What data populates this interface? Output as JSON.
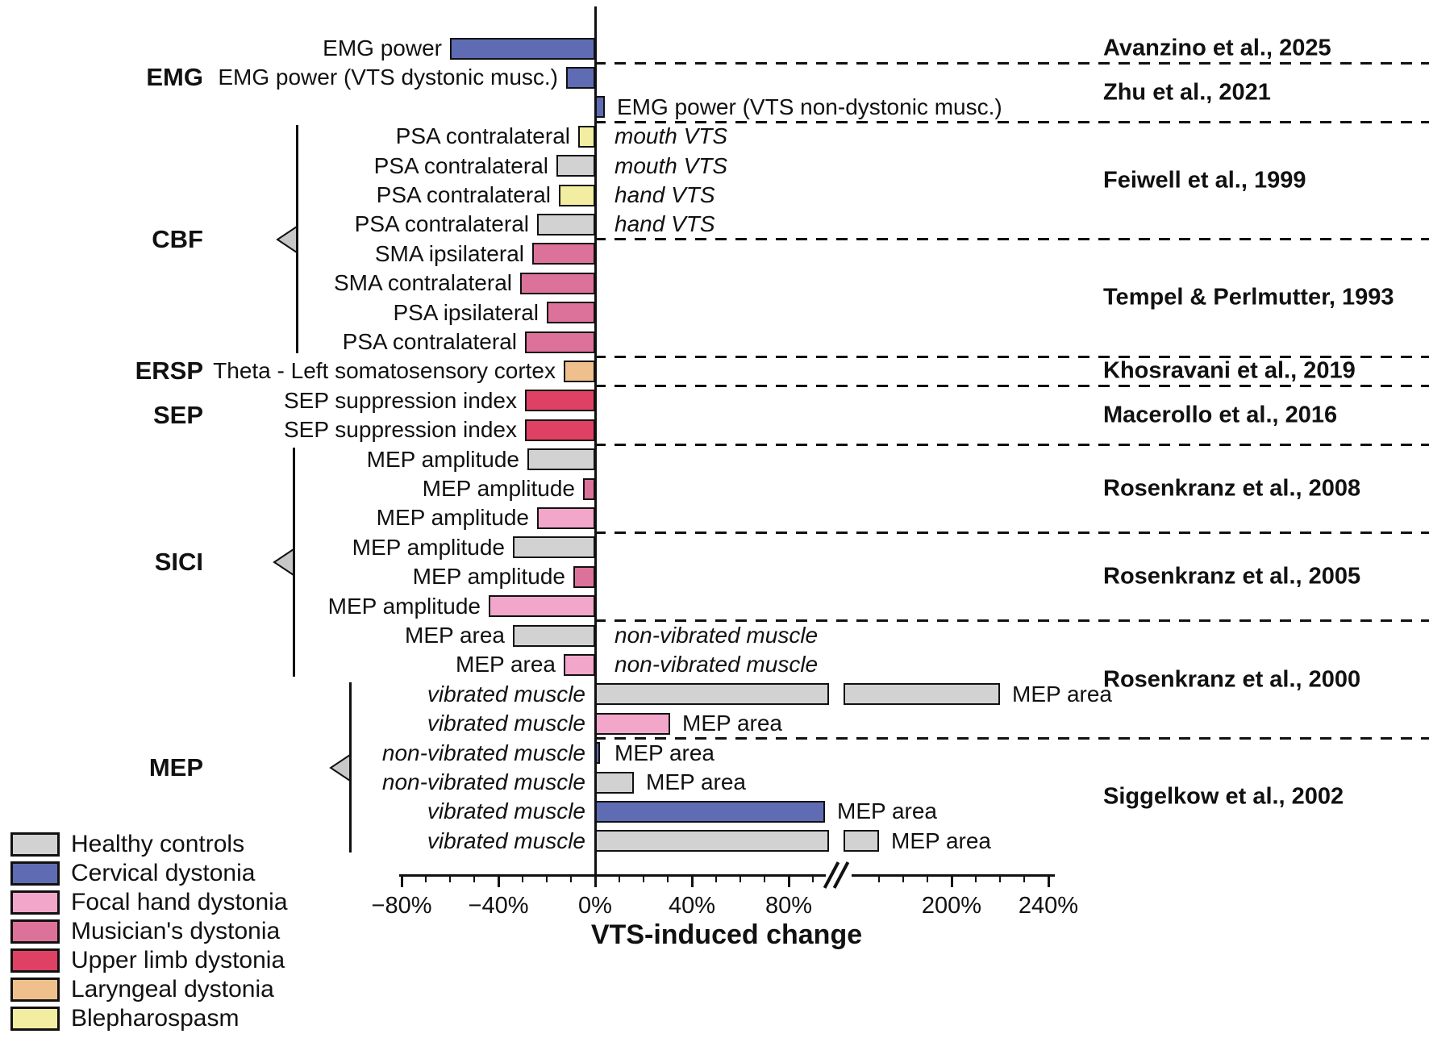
{
  "chart_data": {
    "type": "bar",
    "orientation": "horizontal",
    "xlabel": "VTS-induced change",
    "x_tick_labels": [
      "−80%",
      "−40%",
      "0%",
      "40%",
      "80%",
      "200%",
      "240%"
    ],
    "x_tick_values": [
      -80,
      -40,
      0,
      40,
      80,
      200,
      240
    ],
    "minor_tick_values": [
      -70,
      -60,
      -50,
      -30,
      -20,
      -10,
      10,
      20,
      30,
      50,
      60,
      70,
      90,
      170,
      180,
      190,
      210,
      220,
      230
    ],
    "xlim": [
      -80,
      240
    ],
    "axis_break": {
      "after_value": 100,
      "resume_value": 160
    },
    "grid": "off",
    "legend_position": "bottom-left",
    "legend": [
      {
        "key": "healthy",
        "label": "Healthy controls",
        "color": "#d2d2d2"
      },
      {
        "key": "cervical",
        "label": "Cervical dystonia",
        "color": "#5f6cb3"
      },
      {
        "key": "focal",
        "label": "Focal hand dystonia",
        "color": "#f2a6c9"
      },
      {
        "key": "musician",
        "label": "Musician's dystonia",
        "color": "#dc7299"
      },
      {
        "key": "upper",
        "label": "Upper limb dystonia",
        "color": "#df4164"
      },
      {
        "key": "laryngeal",
        "label": "Laryngeal dystonia",
        "color": "#f0c08c"
      },
      {
        "key": "blepharospasm",
        "label": "Blepharospasm",
        "color": "#f2eda0"
      }
    ],
    "categories": [
      {
        "label": "EMG",
        "first_row": 0,
        "last_row": 2,
        "bracket": false
      },
      {
        "label": "CBF",
        "first_row": 3,
        "last_row": 10,
        "bracket": true,
        "bracket_x": 367
      },
      {
        "label": "ERSP",
        "first_row": 11,
        "last_row": 11,
        "bracket": false
      },
      {
        "label": "SEP",
        "first_row": 12,
        "last_row": 13,
        "bracket": false
      },
      {
        "label": "SICI",
        "first_row": 14,
        "last_row": 21,
        "bracket": true,
        "bracket_x": 363
      },
      {
        "label": "MEP",
        "first_row": 22,
        "last_row": 27,
        "bracket": true,
        "bracket_x": 433
      }
    ],
    "studies": [
      {
        "label": "Avanzino et al., 2025",
        "first_row": 0,
        "last_row": 0
      },
      {
        "label": "Zhu et al., 2021",
        "first_row": 1,
        "last_row": 2
      },
      {
        "label": "Feiwell et al., 1999",
        "first_row": 3,
        "last_row": 6
      },
      {
        "label": "Tempel & Perlmutter, 1993",
        "first_row": 7,
        "last_row": 10
      },
      {
        "label": "Khosravani et al., 2019",
        "first_row": 11,
        "last_row": 11
      },
      {
        "label": "Macerollo et al., 2016",
        "first_row": 12,
        "last_row": 13
      },
      {
        "label": "Rosenkranz et al., 2008",
        "first_row": 14,
        "last_row": 16
      },
      {
        "label": "Rosenkranz et al., 2005",
        "first_row": 17,
        "last_row": 19
      },
      {
        "label": "Rosenkranz et al., 2000",
        "first_row": 20,
        "last_row": 23
      },
      {
        "label": "Siggelkow et al., 2002",
        "first_row": 24,
        "last_row": 27
      }
    ],
    "separators_after_rows": [
      0,
      2,
      6,
      10,
      11,
      13,
      16,
      19,
      23
    ],
    "rows": [
      {
        "label": "EMG power",
        "label_italic": false,
        "value": -60,
        "group": "cervical",
        "note": "",
        "note_italic": false
      },
      {
        "label": "EMG power (VTS dystonic musc.)",
        "label_italic": false,
        "value": -12,
        "group": "cervical",
        "note": "",
        "note_italic": false
      },
      {
        "label": "",
        "label_italic": false,
        "value": 4,
        "group": "cervical",
        "note": "EMG power (VTS non-dystonic musc.)",
        "note_italic": false
      },
      {
        "label": "PSA contralateral",
        "label_italic": false,
        "value": -7,
        "group": "blepharospasm",
        "note": "mouth VTS",
        "note_italic": true
      },
      {
        "label": "PSA contralateral",
        "label_italic": false,
        "value": -16,
        "group": "healthy",
        "note": "mouth VTS",
        "note_italic": true
      },
      {
        "label": "PSA contralateral",
        "label_italic": false,
        "value": -15,
        "group": "blepharospasm",
        "note": "hand VTS",
        "note_italic": true
      },
      {
        "label": "PSA contralateral",
        "label_italic": false,
        "value": -24,
        "group": "healthy",
        "note": "hand VTS",
        "note_italic": true
      },
      {
        "label": "SMA ipsilateral",
        "label_italic": false,
        "value": -26,
        "group": "musician",
        "note": "",
        "note_italic": false
      },
      {
        "label": "SMA contralateral",
        "label_italic": false,
        "value": -31,
        "group": "musician",
        "note": "",
        "note_italic": false
      },
      {
        "label": "PSA ipsilateral",
        "label_italic": false,
        "value": -20,
        "group": "musician",
        "note": "",
        "note_italic": false
      },
      {
        "label": "PSA contralateral",
        "label_italic": false,
        "value": -29,
        "group": "musician",
        "note": "",
        "note_italic": false
      },
      {
        "label": "Theta - Left somatosensory cortex",
        "label_italic": false,
        "value": -13,
        "group": "laryngeal",
        "note": "",
        "note_italic": false
      },
      {
        "label": "SEP suppression index",
        "label_italic": false,
        "value": -29,
        "group": "upper",
        "note": "",
        "note_italic": false
      },
      {
        "label": "SEP suppression index",
        "label_italic": false,
        "value": -29,
        "group": "upper",
        "note": "",
        "note_italic": false
      },
      {
        "label": "MEP amplitude",
        "label_italic": false,
        "value": -28,
        "group": "healthy",
        "note": "",
        "note_italic": false
      },
      {
        "label": "MEP amplitude",
        "label_italic": false,
        "value": -5,
        "group": "musician",
        "note": "",
        "note_italic": false
      },
      {
        "label": "MEP amplitude",
        "label_italic": false,
        "value": -24,
        "group": "focal",
        "note": "",
        "note_italic": false
      },
      {
        "label": "MEP amplitude",
        "label_italic": false,
        "value": -34,
        "group": "healthy",
        "note": "",
        "note_italic": false
      },
      {
        "label": "MEP amplitude",
        "label_italic": false,
        "value": -9,
        "group": "musician",
        "note": "",
        "note_italic": false
      },
      {
        "label": "MEP amplitude",
        "label_italic": false,
        "value": -44,
        "group": "focal",
        "note": "",
        "note_italic": false
      },
      {
        "label": "MEP area",
        "label_italic": false,
        "value": -34,
        "group": "healthy",
        "note": "non-vibrated muscle",
        "note_italic": true
      },
      {
        "label": "MEP area",
        "label_italic": false,
        "value": -13,
        "group": "focal",
        "note": "non-vibrated muscle",
        "note_italic": true
      },
      {
        "label": "vibrated muscle",
        "label_italic": true,
        "value": 220,
        "group": "healthy",
        "note": "MEP area",
        "note_italic": false
      },
      {
        "label": "vibrated muscle",
        "label_italic": true,
        "value": 31,
        "group": "focal",
        "note": "MEP area",
        "note_italic": false
      },
      {
        "label": "non-vibrated muscle",
        "label_italic": true,
        "value": 2,
        "group": "cervical",
        "note": "MEP area",
        "note_italic": false
      },
      {
        "label": "non-vibrated muscle",
        "label_italic": true,
        "value": 16,
        "group": "healthy",
        "note": "MEP area",
        "note_italic": false
      },
      {
        "label": "vibrated muscle",
        "label_italic": true,
        "value": 95,
        "group": "cervical",
        "note": "MEP area",
        "note_italic": false
      },
      {
        "label": "vibrated muscle",
        "label_italic": true,
        "value": 170,
        "group": "healthy",
        "note": "MEP area",
        "note_italic": false
      }
    ]
  }
}
